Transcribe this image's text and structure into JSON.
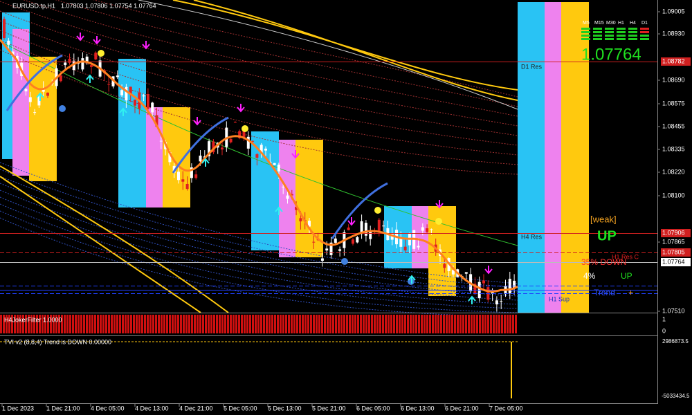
{
  "header": {
    "symbol": "EURUSD.tp,H1",
    "ohlc": "1.07803 1.07806 1.07754 1.07764"
  },
  "price_axis": [
    "1.09005",
    "1.08930",
    "1.08690",
    "1.08575",
    "1.08455",
    "1.08335",
    "1.08220",
    "1.08100",
    "1.07865",
    "1.07510"
  ],
  "price_tags": {
    "d1_res": "1.08782",
    "h4_res": "1.07906",
    "h1_res": "1.07805",
    "bid": "1.07764"
  },
  "time_axis": [
    "1 Dec 2023",
    "1 Dec 21:00",
    "4 Dec 05:00",
    "4 Dec 13:00",
    "4 Dec 21:00",
    "5 Dec 05:00",
    "5 Dec 13:00",
    "5 Dec 21:00",
    "6 Dec 05:00",
    "6 Dec 13:00",
    "6 Dec 21:00",
    "7 Dec 05:00"
  ],
  "labels": {
    "d1_res": "D1 Res",
    "h4_res": "H4 Res",
    "h1_res": "H1 Res C",
    "h1_sup": "H1 Sup",
    "weak": "[weak]",
    "signal": "UP",
    "down_pct": "35% DOWN",
    "up_pct": "4%",
    "up_word": "UP",
    "trend": "Trend",
    "trend_sign": "+"
  },
  "panel": {
    "timeframes": [
      "M5",
      "M15",
      "M30",
      "H1",
      "H4",
      "D1"
    ],
    "price": "1.07764"
  },
  "indicators": {
    "joker": {
      "title": "H4JokerFilter 1.0000",
      "scale": [
        "1",
        "0"
      ]
    },
    "tvi": {
      "title": "TVI v2 (8,8,4) Trend is DOWN 0.00000",
      "scale": [
        "2986873.5",
        "-5033434.5"
      ]
    }
  }
}
